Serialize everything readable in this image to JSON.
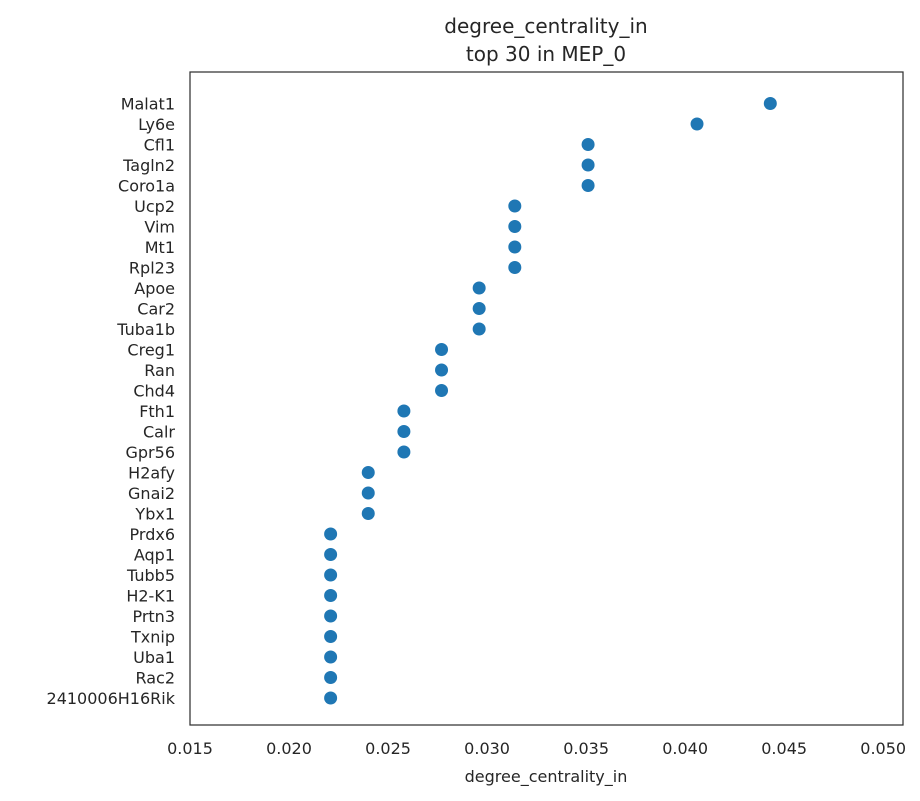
{
  "chart_data": {
    "type": "scatter",
    "title_line1": "degree_centrality_in",
    "title_line2": "top 30 in MEP_0",
    "xlabel": "degree_centrality_in",
    "ylabel": "",
    "xlim": [
      0.015,
      0.051
    ],
    "xticks": [
      "0.015",
      "0.020",
      "0.025",
      "0.030",
      "0.035",
      "0.040",
      "0.045",
      "0.050"
    ],
    "grid": false,
    "point_color": "#1f77b4",
    "categories": [
      "Malat1",
      "Ly6e",
      "Cfl1",
      "Tagln2",
      "Coro1a",
      "Ucp2",
      "Vim",
      "Mt1",
      "Rpl23",
      "Apoe",
      "Car2",
      "Tuba1b",
      "Creg1",
      "Ran",
      "Chd4",
      "Fth1",
      "Calr",
      "Gpr56",
      "H2afy",
      "Gnai2",
      "Ybx1",
      "Prdx6",
      "Aqp1",
      "Tubb5",
      "H2-K1",
      "Prtn3",
      "Txnip",
      "Uba1",
      "Rac2",
      "2410006H16Rik"
    ],
    "values": [
      0.0443,
      0.0406,
      0.0351,
      0.0351,
      0.0351,
      0.0314,
      0.0314,
      0.0314,
      0.0314,
      0.0296,
      0.0296,
      0.0296,
      0.0277,
      0.0277,
      0.0277,
      0.0258,
      0.0258,
      0.0258,
      0.024,
      0.024,
      0.024,
      0.0221,
      0.0221,
      0.0221,
      0.0221,
      0.0221,
      0.0221,
      0.0221,
      0.0221,
      0.0221
    ]
  }
}
